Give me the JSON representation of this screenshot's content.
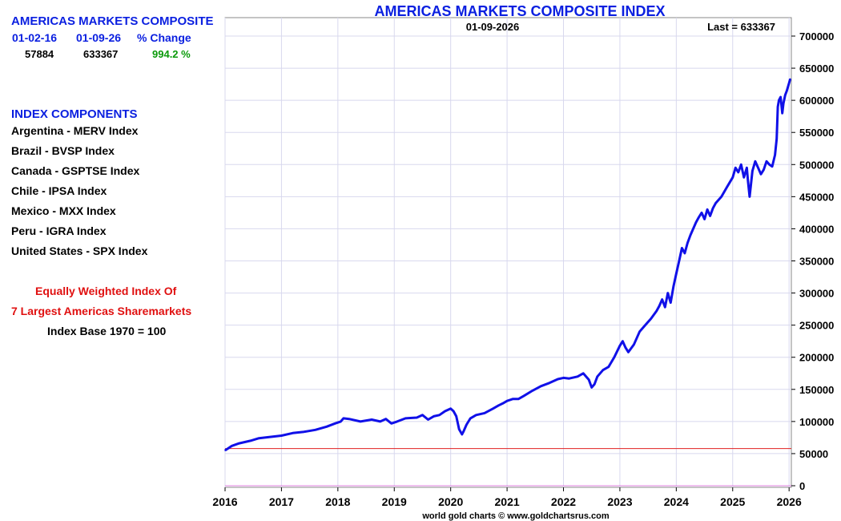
{
  "panel": {
    "title": "AMERICAS MARKETS COMPOSITE",
    "col_start_label": "01-02-16",
    "col_end_label": "01-09-26",
    "col_change_label": "% Change",
    "start_value": "57884",
    "end_value": "633367",
    "change_value": "994.2 %",
    "components_heading": "INDEX COMPONENTS",
    "components": [
      "Argentina - MERV Index",
      "Brazil - BVSP Index",
      "Canada - GSPTSE Index",
      "Chile - IPSA Index",
      "Mexico - MXX Index",
      "Peru - IGRA Index",
      "United States - SPX Index"
    ],
    "note_line1": "Equally Weighted Index Of",
    "note_line2": "7 Largest Americas Sharemarkets",
    "note_line3": "Index Base 1970 = 100"
  },
  "colors": {
    "line": "#1010e8",
    "grid": "#d8d8ee",
    "baseline": "#e02020",
    "zeroline": "#e080e0",
    "title": "#0a1fe0"
  },
  "chart_data": {
    "type": "line",
    "title": "AMERICAS MARKETS COMPOSITE INDEX",
    "date_label": "01-09-2026",
    "last_label": "Last = 633367",
    "footer": "world gold charts © www.goldchartsrus.com",
    "xlabel": "",
    "ylabel": "",
    "xlim": [
      2016.0,
      2026.04
    ],
    "ylim": [
      0,
      720000
    ],
    "x_ticks": [
      2016,
      2017,
      2018,
      2019,
      2020,
      2021,
      2022,
      2023,
      2024,
      2025,
      2026
    ],
    "y_ticks": [
      0,
      50000,
      100000,
      150000,
      200000,
      250000,
      300000,
      350000,
      400000,
      450000,
      500000,
      550000,
      600000,
      650000,
      700000
    ],
    "y_tick_labels": [
      "0",
      "50000",
      "100000",
      "150000",
      "200000",
      "250000",
      "300000",
      "350000",
      "400000",
      "450000",
      "500000",
      "550000",
      "600000",
      "650000",
      "700000"
    ],
    "reference_line": 57884,
    "grid": true,
    "series": [
      {
        "name": "Americas Markets Composite",
        "x": [
          2016.0,
          2016.05,
          2016.12,
          2016.25,
          2016.45,
          2016.6,
          2016.8,
          2017.0,
          2017.2,
          2017.4,
          2017.6,
          2017.8,
          2017.95,
          2018.05,
          2018.1,
          2018.2,
          2018.4,
          2018.6,
          2018.75,
          2018.85,
          2018.95,
          2019.05,
          2019.2,
          2019.4,
          2019.5,
          2019.6,
          2019.7,
          2019.8,
          2019.9,
          2020.0,
          2020.05,
          2020.1,
          2020.15,
          2020.2,
          2020.23,
          2020.28,
          2020.35,
          2020.45,
          2020.6,
          2020.75,
          2020.85,
          2020.92,
          2021.0,
          2021.1,
          2021.2,
          2021.3,
          2021.45,
          2021.6,
          2021.75,
          2021.9,
          2022.0,
          2022.1,
          2022.25,
          2022.35,
          2022.45,
          2022.5,
          2022.55,
          2022.6,
          2022.7,
          2022.8,
          2022.9,
          2023.0,
          2023.05,
          2023.1,
          2023.15,
          2023.25,
          2023.35,
          2023.45,
          2023.55,
          2023.65,
          2023.7,
          2023.75,
          2023.8,
          2023.85,
          2023.9,
          2023.95,
          2024.0,
          2024.05,
          2024.1,
          2024.15,
          2024.2,
          2024.25,
          2024.3,
          2024.35,
          2024.4,
          2024.45,
          2024.5,
          2024.55,
          2024.6,
          2024.65,
          2024.7,
          2024.8,
          2024.9,
          2025.0,
          2025.05,
          2025.1,
          2025.15,
          2025.2,
          2025.25,
          2025.27,
          2025.3,
          2025.35,
          2025.4,
          2025.45,
          2025.5,
          2025.55,
          2025.6,
          2025.65,
          2025.7,
          2025.75,
          2025.78,
          2025.8,
          2025.82,
          2025.85,
          2025.88,
          2025.9,
          2025.93,
          2025.96,
          2026.0,
          2026.02
        ],
        "values": [
          55000,
          57884,
          62000,
          66000,
          70000,
          74000,
          76000,
          78000,
          82000,
          84000,
          87000,
          92000,
          97000,
          100000,
          105000,
          104000,
          100000,
          103000,
          100000,
          104000,
          97000,
          100000,
          105000,
          106000,
          110000,
          103000,
          108000,
          110000,
          116000,
          120000,
          116000,
          108000,
          88000,
          80000,
          85000,
          95000,
          105000,
          110000,
          113000,
          120000,
          125000,
          128000,
          132000,
          135000,
          135000,
          140000,
          148000,
          155000,
          160000,
          166000,
          168000,
          167000,
          170000,
          175000,
          165000,
          153000,
          158000,
          170000,
          180000,
          185000,
          200000,
          218000,
          225000,
          215000,
          208000,
          220000,
          240000,
          250000,
          260000,
          272000,
          280000,
          290000,
          278000,
          300000,
          285000,
          310000,
          330000,
          350000,
          370000,
          362000,
          378000,
          390000,
          400000,
          410000,
          418000,
          425000,
          415000,
          430000,
          420000,
          432000,
          440000,
          450000,
          465000,
          480000,
          495000,
          488000,
          500000,
          480000,
          495000,
          475000,
          450000,
          490000,
          505000,
          495000,
          485000,
          492000,
          505000,
          500000,
          497000,
          515000,
          540000,
          590000,
          600000,
          605000,
          580000,
          595000,
          608000,
          615000,
          627000,
          633367
        ]
      }
    ]
  }
}
